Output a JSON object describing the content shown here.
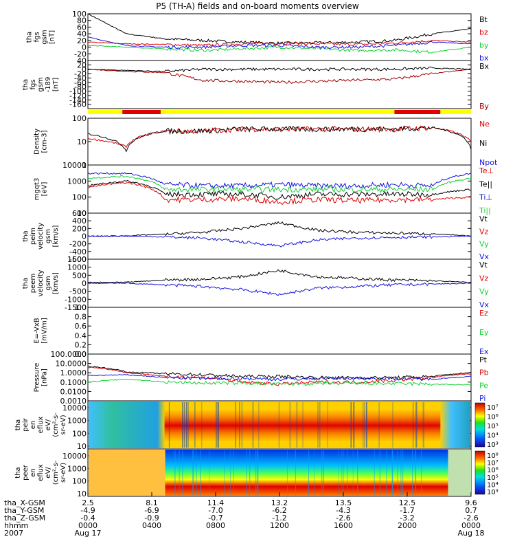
{
  "title": "P5 (TH-A) fields and on-board moments overview",
  "colors": {
    "black": "#000000",
    "red": "#e00000",
    "green": "#10d030",
    "blue": "#1010e0",
    "darkred": "#a00000",
    "yellow": "#ffff00",
    "barred": "#e00000"
  },
  "chart_data": [
    {
      "type": "line",
      "panel": "fgs",
      "ylabel": [
        "tha",
        "fgs",
        "gsm",
        "[nT]"
      ],
      "ylim": [
        -40,
        100
      ],
      "yticks": [
        "100",
        "80",
        "60",
        "40",
        "20",
        "0",
        "-20"
      ],
      "legend": [
        {
          "name": "Bt",
          "color": "black"
        },
        {
          "name": "bz",
          "color": "red"
        },
        {
          "name": "by",
          "color": "green"
        },
        {
          "name": "bx",
          "color": "blue"
        }
      ],
      "series": [
        {
          "name": "Bt",
          "x": [
            0,
            0.1,
            0.2,
            0.3,
            0.4,
            0.5,
            0.6,
            0.7,
            0.8,
            0.9,
            1.0
          ],
          "values": [
            100,
            40,
            25,
            20,
            15,
            12,
            13,
            15,
            20,
            40,
            55
          ]
        },
        {
          "name": "bz",
          "values": [
            15,
            10,
            8,
            5,
            10,
            12,
            10,
            8,
            12,
            20,
            15
          ]
        },
        {
          "name": "by",
          "values": [
            5,
            0,
            -5,
            -10,
            -5,
            0,
            -5,
            -10,
            -8,
            -15,
            0
          ]
        },
        {
          "name": "bx",
          "values": [
            30,
            5,
            0,
            0,
            5,
            5,
            0,
            0,
            5,
            15,
            10
          ]
        }
      ]
    },
    {
      "type": "line",
      "panel": "fgs2",
      "ylabel": [
        "tha",
        "fgs",
        "gsm",
        "-189",
        "[nT]"
      ],
      "ylim": [
        -180,
        40
      ],
      "yticks": [
        "40",
        "20",
        "0",
        "-20",
        "-40",
        "-60",
        "-80",
        "-100",
        "-120",
        "-140",
        "-160"
      ],
      "legend": [
        {
          "name": "Bx",
          "color": "black"
        },
        {
          "name": "By",
          "color": "darkred"
        }
      ],
      "series": [
        {
          "name": "Bx",
          "values": [
            0,
            -5,
            -10,
            0,
            0,
            0,
            0,
            0,
            0,
            5,
            0
          ]
        },
        {
          "name": "By",
          "values": [
            0,
            -10,
            -15,
            -50,
            -55,
            -60,
            -55,
            -50,
            -45,
            -20,
            0
          ]
        }
      ]
    },
    {
      "type": "bar",
      "panel": "mode",
      "segments": [
        {
          "from": 0,
          "to": 0.09,
          "color": "yellow"
        },
        {
          "from": 0.09,
          "to": 0.19,
          "color": "barred"
        },
        {
          "from": 0.19,
          "to": 0.8,
          "color": "yellow"
        },
        {
          "from": 0.8,
          "to": 0.92,
          "color": "barred"
        },
        {
          "from": 0.92,
          "to": 1.0,
          "color": "yellow"
        }
      ]
    },
    {
      "type": "line",
      "panel": "density",
      "scale": "log",
      "ylabel": [
        "Density",
        "[cm-3]"
      ],
      "ylim": [
        0.1,
        100
      ],
      "yticks": [
        "100",
        "10",
        "1"
      ],
      "legend": [
        {
          "name": "Ne",
          "color": "red"
        },
        {
          "name": "Ni",
          "color": "black"
        },
        {
          "name": "Npot",
          "color": "blue"
        }
      ],
      "series": [
        {
          "name": "Ne",
          "values": [
            5,
            1.5,
            15,
            15,
            20,
            20,
            20,
            20,
            20,
            25,
            3
          ]
        },
        {
          "name": "Ni",
          "values": [
            10,
            0.8,
            15,
            15,
            20,
            20,
            20,
            20,
            20,
            25,
            1
          ]
        }
      ]
    },
    {
      "type": "line",
      "panel": "temperature",
      "scale": "log",
      "ylabel": [
        "mgqt3",
        "[eV]"
      ],
      "ylim": [
        10,
        10000
      ],
      "yticks": [
        "10000",
        "1000",
        "100",
        "10"
      ],
      "legend": [
        {
          "name": "Te⊥",
          "color": "red"
        },
        {
          "name": "Te||",
          "color": "black"
        },
        {
          "name": "Ti⊥",
          "color": "blue"
        },
        {
          "name": "Ti||",
          "color": "green"
        }
      ],
      "series": [
        {
          "name": "Ti⊥",
          "values": [
            3000,
            3000,
            600,
            500,
            500,
            600,
            500,
            500,
            600,
            500,
            3000
          ]
        },
        {
          "name": "Ti||",
          "values": [
            1500,
            2000,
            300,
            300,
            300,
            300,
            300,
            300,
            300,
            300,
            1500
          ]
        },
        {
          "name": "Te||",
          "values": [
            500,
            1000,
            150,
            150,
            150,
            100,
            150,
            150,
            150,
            150,
            300
          ]
        },
        {
          "name": "Te⊥",
          "values": [
            400,
            800,
            70,
            70,
            80,
            50,
            70,
            60,
            70,
            70,
            100
          ]
        }
      ]
    },
    {
      "type": "line",
      "panel": "peimvel",
      "ylabel": [
        "tha",
        "peim",
        "velocity",
        "gsm",
        "[km/s]"
      ],
      "ylim": [
        -600,
        600
      ],
      "yticks": [
        "600",
        "400",
        "200",
        "0",
        "-200",
        "-400",
        "-600"
      ],
      "legend": [
        {
          "name": "Vt",
          "color": "black"
        },
        {
          "name": "Vz",
          "color": "red"
        },
        {
          "name": "Vy",
          "color": "green"
        },
        {
          "name": "Vx",
          "color": "blue"
        }
      ],
      "series": [
        {
          "name": "Vt",
          "values": [
            0,
            10,
            50,
            100,
            200,
            350,
            150,
            100,
            80,
            60,
            0
          ]
        },
        {
          "name": "Vx",
          "values": [
            0,
            0,
            -20,
            -50,
            -150,
            -250,
            -100,
            -50,
            -30,
            -20,
            0
          ]
        }
      ]
    },
    {
      "type": "line",
      "panel": "peemvel",
      "ylabel": [
        "tha",
        "peem",
        "velocity",
        "gsm",
        "[km/s]"
      ],
      "ylim": [
        -1500,
        1500
      ],
      "yticks": [
        "1500",
        "1000",
        "500",
        "0",
        "-500",
        "-1000",
        "-1500"
      ],
      "legend": [
        {
          "name": "Vt",
          "color": "black"
        },
        {
          "name": "Vz",
          "color": "red"
        },
        {
          "name": "Vy",
          "color": "green"
        },
        {
          "name": "Vx",
          "color": "blue"
        }
      ],
      "series": [
        {
          "name": "Vt",
          "values": [
            50,
            60,
            200,
            250,
            400,
            800,
            400,
            300,
            200,
            150,
            50
          ]
        },
        {
          "name": "Vx",
          "values": [
            0,
            0,
            -100,
            -200,
            -400,
            -700,
            -300,
            -200,
            -100,
            -50,
            0
          ]
        }
      ]
    },
    {
      "type": "line",
      "panel": "efield",
      "ylabel": [
        "E=-VxB",
        "[mV/m]"
      ],
      "ylim": [
        0,
        1
      ],
      "yticks": [
        "1.0",
        "0.8",
        "0.6",
        "0.4",
        "0.2",
        "0.0"
      ],
      "legend": [
        {
          "name": "Ez",
          "color": "red"
        },
        {
          "name": "Ey",
          "color": "green"
        },
        {
          "name": "Ex",
          "color": "blue"
        }
      ],
      "series": []
    },
    {
      "type": "line",
      "panel": "pressure",
      "scale": "log",
      "ylabel": [
        "Pressure",
        "[nPa]"
      ],
      "ylim": [
        0.001,
        100
      ],
      "yticks": [
        "100.0000",
        "10.0000",
        "1.0000",
        "0.1000",
        "0.0100",
        "0.0010"
      ],
      "legend": [
        {
          "name": "Pt",
          "color": "black"
        },
        {
          "name": "Pb",
          "color": "red"
        },
        {
          "name": "Pe",
          "color": "green"
        },
        {
          "name": "Pi",
          "color": "blue"
        }
      ],
      "series": [
        {
          "name": "Pt",
          "values": [
            5,
            1.2,
            0.8,
            0.6,
            0.4,
            0.4,
            0.3,
            0.3,
            0.3,
            0.4,
            1.0
          ]
        },
        {
          "name": "Pb",
          "values": [
            4,
            1.0,
            0.4,
            0.3,
            0.1,
            0.06,
            0.1,
            0.1,
            0.15,
            0.3,
            0.8
          ]
        },
        {
          "name": "Pe",
          "values": [
            0.1,
            0.2,
            0.1,
            0.08,
            0.08,
            0.06,
            0.07,
            0.07,
            0.07,
            0.06,
            0.05
          ]
        },
        {
          "name": "Pi",
          "values": [
            0.5,
            0.6,
            0.3,
            0.25,
            0.25,
            0.2,
            0.25,
            0.25,
            0.25,
            0.2,
            0.4
          ]
        }
      ]
    },
    {
      "type": "heatmap",
      "panel": "peir",
      "ylabel": [
        "tha",
        "peir",
        "en",
        "eflux",
        "eV/",
        "(cm²-s-",
        "sr-eV)"
      ],
      "yticks": [
        "10000",
        "1000",
        "100",
        "10"
      ],
      "colorbar": [
        "10⁷",
        "10⁶",
        "10⁵",
        "10⁴",
        "10³"
      ]
    },
    {
      "type": "heatmap",
      "panel": "peer",
      "ylabel": [
        "tha",
        "peer",
        "en",
        "eflux",
        "eV/",
        "(cm²-s-",
        "sr-eV)"
      ],
      "yticks": [
        "10000",
        "1000",
        "100",
        "10"
      ],
      "colorbar": [
        "10⁸",
        "10⁷",
        "10⁶",
        "10⁵",
        "10⁴",
        "10³"
      ]
    }
  ],
  "xaxis": {
    "row_labels": [
      "tha_X-GSM",
      "tha_Y-GSM",
      "tha_Z-GSM",
      "hhmm",
      "2007"
    ],
    "ticks": [
      {
        "x": "2.5",
        "y": "-4.9",
        "z": "-0.4",
        "t": "0000",
        "d": "Aug 17"
      },
      {
        "x": "8.1",
        "y": "-6.9",
        "z": "-0.9",
        "t": "0400",
        "d": ""
      },
      {
        "x": "11.4",
        "y": "-7.0",
        "z": "-0.7",
        "t": "0800",
        "d": ""
      },
      {
        "x": "13.2",
        "y": "-6.2",
        "z": "-1.2",
        "t": "1200",
        "d": ""
      },
      {
        "x": "13.5",
        "y": "-4.3",
        "z": "-2.6",
        "t": "1600",
        "d": ""
      },
      {
        "x": "12.5",
        "y": "-1.7",
        "z": "-3.2",
        "t": "2000",
        "d": ""
      },
      {
        "x": "9.6",
        "y": "0.7",
        "z": "-2.6",
        "t": "0000",
        "d": "Aug 18"
      }
    ]
  }
}
